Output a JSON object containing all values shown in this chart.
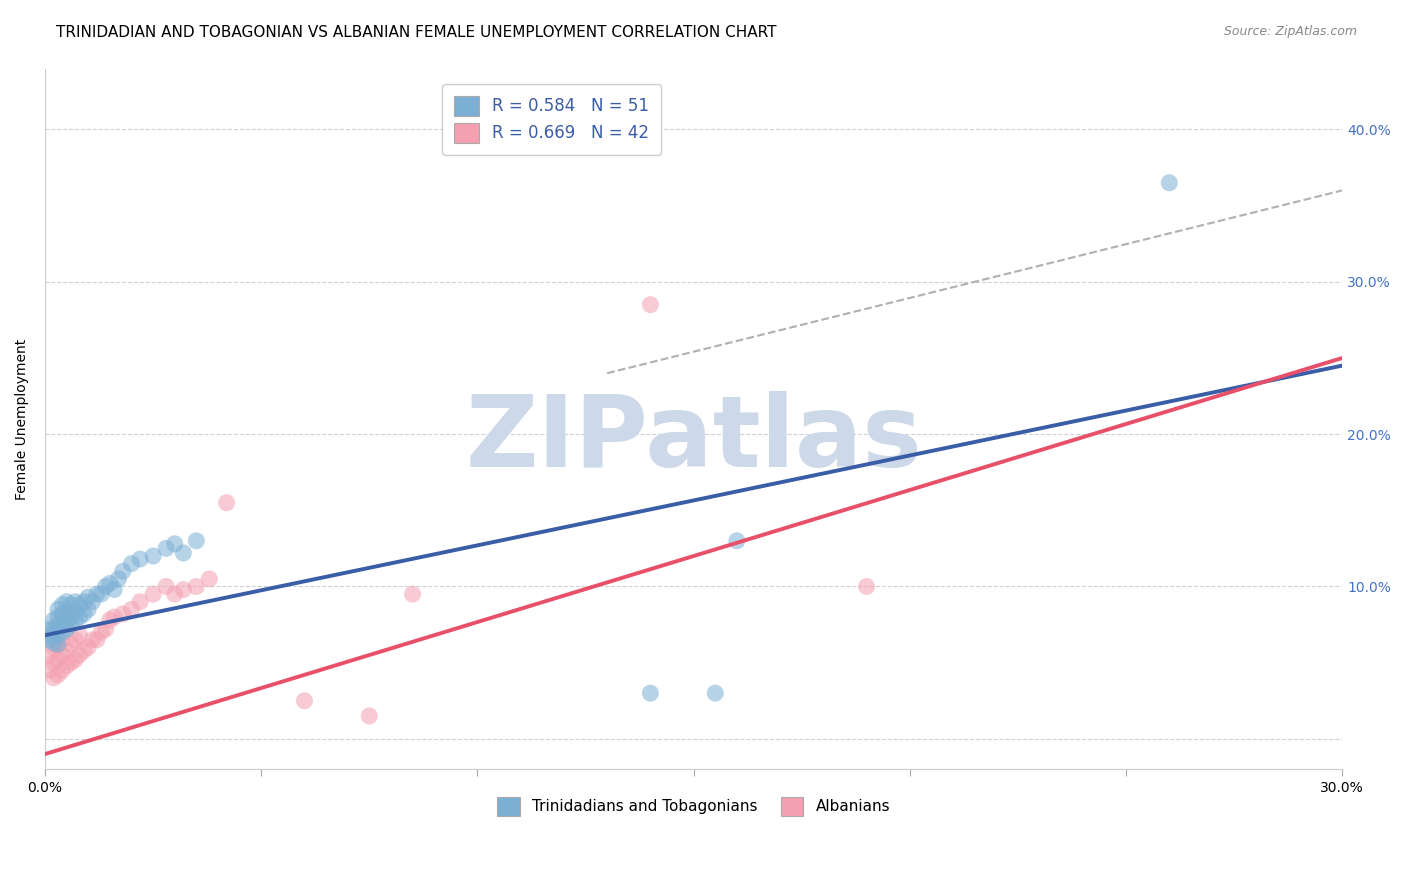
{
  "title": "TRINIDADIAN AND TOBAGONIAN VS ALBANIAN FEMALE UNEMPLOYMENT CORRELATION CHART",
  "source": "Source: ZipAtlas.com",
  "ylabel": "Female Unemployment",
  "xlim": [
    0.0,
    0.3
  ],
  "ylim": [
    -0.02,
    0.44
  ],
  "xticks": [
    0.0,
    0.05,
    0.1,
    0.15,
    0.2,
    0.25,
    0.3
  ],
  "xtick_labels": [
    "0.0%",
    "",
    "",
    "",
    "",
    "",
    "30.0%"
  ],
  "yticks": [
    0.0,
    0.1,
    0.2,
    0.3,
    0.4
  ],
  "ytick_labels_right": [
    "",
    "10.0%",
    "20.0%",
    "30.0%",
    "40.0%"
  ],
  "legend_entries": [
    {
      "label": "R = 0.584   N = 51",
      "color": "#aec6e8"
    },
    {
      "label": "R = 0.669   N = 42",
      "color": "#f4b8c1"
    }
  ],
  "blue_color": "#3a5da8",
  "pink_color": "#e8506a",
  "dot_blue_color": "#7bafd4",
  "dot_pink_color": "#f4a0b0",
  "watermark_text": "ZIPatlas",
  "watermark_color": "#cdd8e8",
  "background_color": "#ffffff",
  "grid_color": "#cccccc",
  "title_fontsize": 11,
  "axis_label_fontsize": 10,
  "tick_fontsize": 10,
  "right_tick_color": "#4472c4",
  "blue_scatter": {
    "x": [
      0.001,
      0.001,
      0.001,
      0.002,
      0.002,
      0.002,
      0.002,
      0.003,
      0.003,
      0.003,
      0.003,
      0.003,
      0.004,
      0.004,
      0.004,
      0.004,
      0.005,
      0.005,
      0.005,
      0.005,
      0.006,
      0.006,
      0.006,
      0.007,
      0.007,
      0.007,
      0.008,
      0.008,
      0.009,
      0.009,
      0.01,
      0.01,
      0.011,
      0.012,
      0.013,
      0.014,
      0.015,
      0.016,
      0.017,
      0.018,
      0.02,
      0.022,
      0.025,
      0.028,
      0.03,
      0.032,
      0.035,
      0.14,
      0.155,
      0.16,
      0.26
    ],
    "y": [
      0.065,
      0.068,
      0.072,
      0.063,
      0.068,
      0.072,
      0.078,
      0.062,
      0.068,
      0.075,
      0.08,
      0.085,
      0.07,
      0.075,
      0.082,
      0.088,
      0.072,
      0.078,
      0.083,
      0.09,
      0.075,
      0.08,
      0.088,
      0.078,
      0.083,
      0.09,
      0.08,
      0.088,
      0.082,
      0.09,
      0.085,
      0.093,
      0.09,
      0.095,
      0.095,
      0.1,
      0.102,
      0.098,
      0.105,
      0.11,
      0.115,
      0.118,
      0.12,
      0.125,
      0.128,
      0.122,
      0.13,
      0.03,
      0.03,
      0.13,
      0.365
    ]
  },
  "pink_scatter": {
    "x": [
      0.001,
      0.001,
      0.002,
      0.002,
      0.002,
      0.003,
      0.003,
      0.003,
      0.004,
      0.004,
      0.004,
      0.005,
      0.005,
      0.006,
      0.006,
      0.007,
      0.007,
      0.008,
      0.008,
      0.009,
      0.01,
      0.011,
      0.012,
      0.013,
      0.014,
      0.015,
      0.016,
      0.018,
      0.02,
      0.022,
      0.025,
      0.028,
      0.03,
      0.032,
      0.035,
      0.038,
      0.042,
      0.06,
      0.075,
      0.085,
      0.14,
      0.19
    ],
    "y": [
      0.045,
      0.055,
      0.04,
      0.05,
      0.06,
      0.042,
      0.052,
      0.062,
      0.045,
      0.055,
      0.065,
      0.048,
      0.058,
      0.05,
      0.062,
      0.052,
      0.065,
      0.055,
      0.068,
      0.058,
      0.06,
      0.065,
      0.065,
      0.07,
      0.072,
      0.078,
      0.08,
      0.082,
      0.085,
      0.09,
      0.095,
      0.1,
      0.095,
      0.098,
      0.1,
      0.105,
      0.155,
      0.025,
      0.015,
      0.095,
      0.285,
      0.1
    ]
  },
  "blue_line": {
    "x0": 0.0,
    "y0": 0.068,
    "x1": 0.3,
    "y1": 0.245
  },
  "pink_line": {
    "x0": 0.0,
    "y0": -0.01,
    "x1": 0.3,
    "y1": 0.25
  },
  "dash_line": {
    "x0": 0.13,
    "y0": 0.24,
    "x1": 0.3,
    "y1": 0.36
  }
}
